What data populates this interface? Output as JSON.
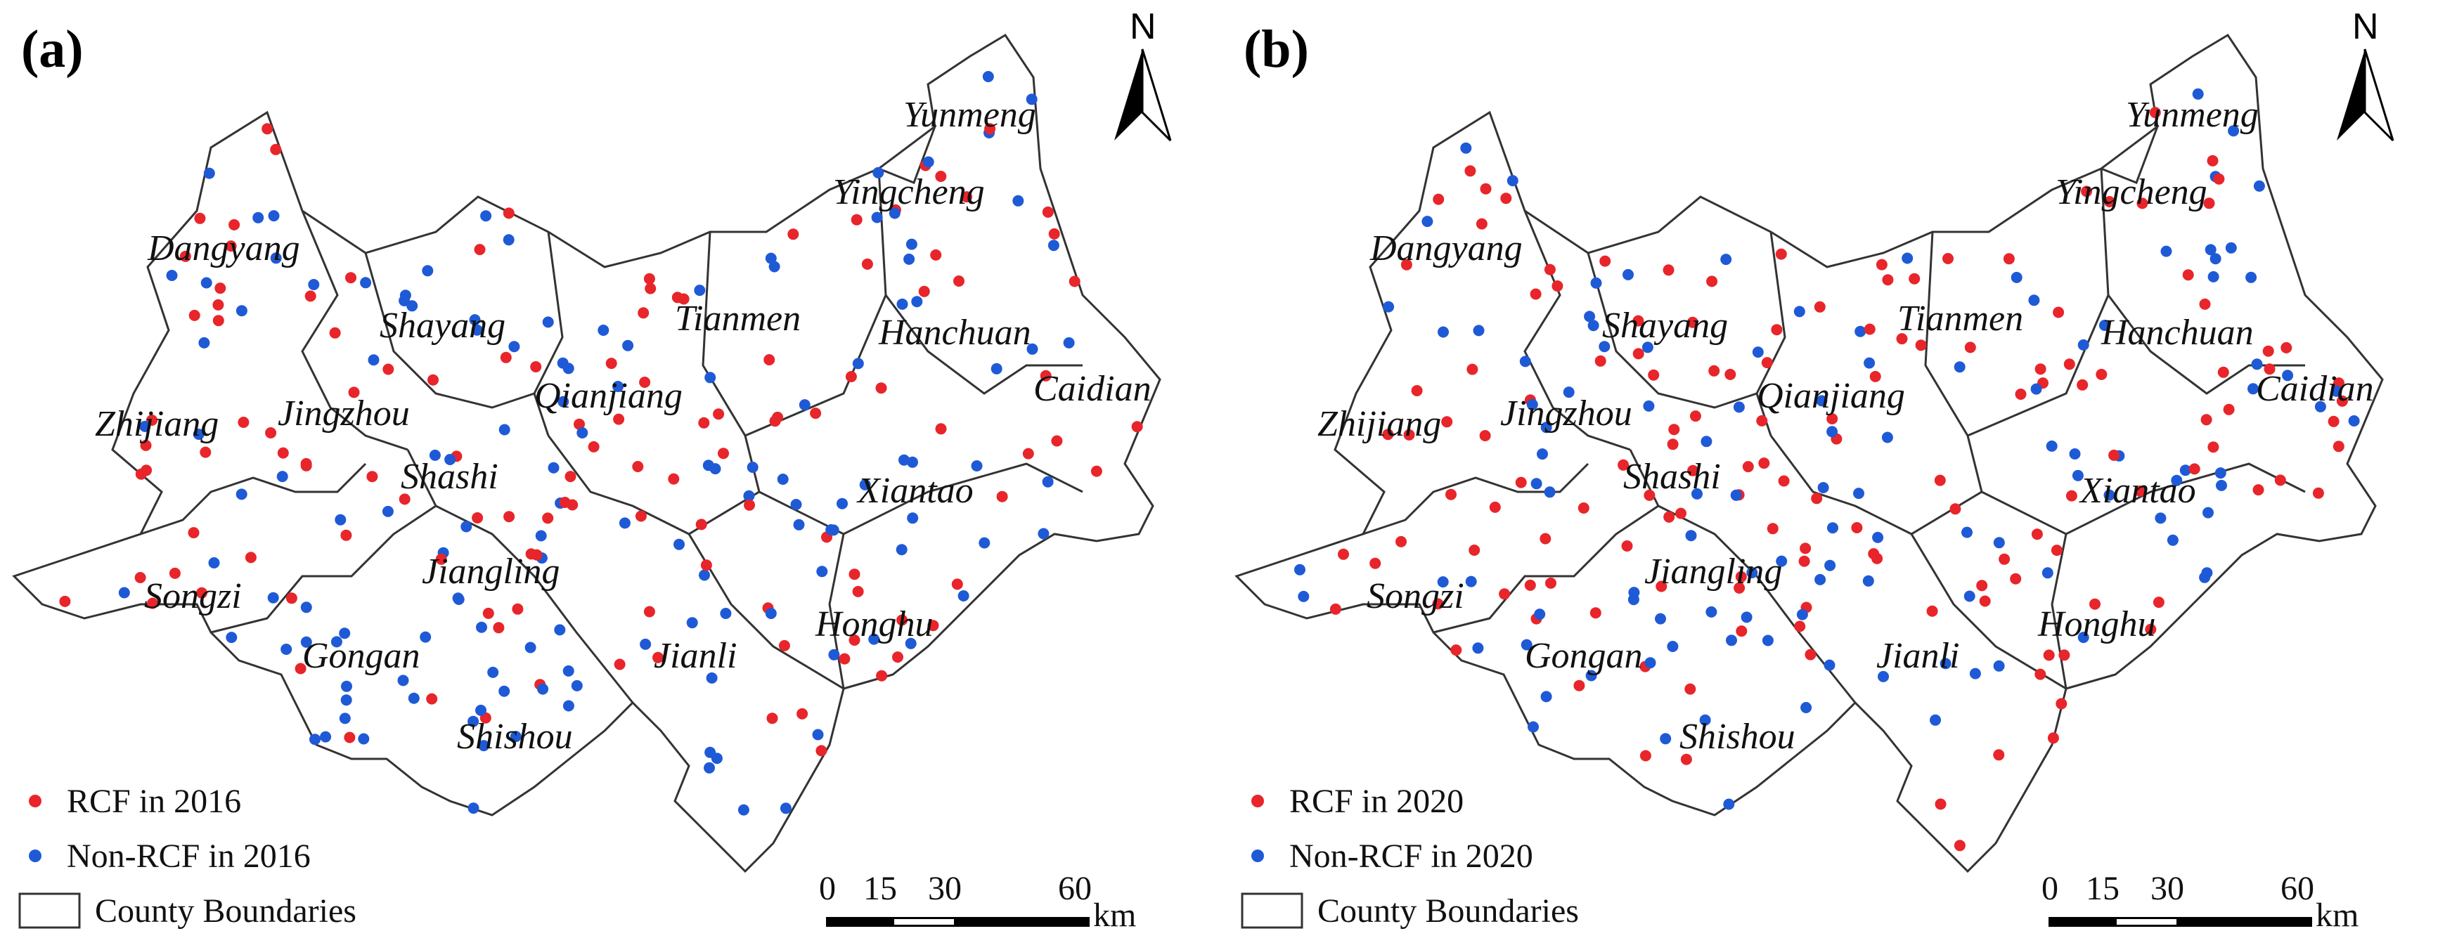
{
  "colors": {
    "rcf": "#e8252a",
    "non_rcf": "#1f5ad6",
    "boundary": "#333333"
  },
  "panels": [
    {
      "letter": "(a)",
      "north": "N",
      "legend": {
        "rcf": "RCF in 2016",
        "non_rcf": "Non-RCF in 2016",
        "boundaries": "County Boundaries"
      },
      "scale": {
        "ticks": [
          "0",
          "15",
          "30",
          "60"
        ],
        "unit": "km"
      },
      "counties": [
        "Yunmeng",
        "Yingcheng",
        "Dangyang",
        "Tianmen",
        "Hanchuan",
        "Shayang",
        "Caidian",
        "Qianjiang",
        "Zhijiang",
        "Jingzhou",
        "Shashi",
        "Xiantao",
        "Jiangling",
        "Songzi",
        "Gongan",
        "Honghu",
        "Jianli",
        "Shishou"
      ]
    },
    {
      "letter": "(b)",
      "north": "N",
      "legend": {
        "rcf": "RCF in 2020",
        "non_rcf": "Non-RCF in 2020",
        "boundaries": "County Boundaries"
      },
      "scale": {
        "ticks": [
          "0",
          "15",
          "30",
          "60"
        ],
        "unit": "km"
      },
      "counties": [
        "Yunmeng",
        "Yingcheng",
        "Dangyang",
        "Tianmen",
        "Hanchuan",
        "Shayang",
        "Caidian",
        "Qianjiang",
        "Zhijiang",
        "Jingzhou",
        "Shashi",
        "Xiantao",
        "Jiangling",
        "Songzi",
        "Gongan",
        "Honghu",
        "Jianli",
        "Shishou"
      ]
    }
  ],
  "sample_share": {
    "panel_a_rcf_fraction": 0.45,
    "panel_b_rcf_fraction": 0.58
  }
}
